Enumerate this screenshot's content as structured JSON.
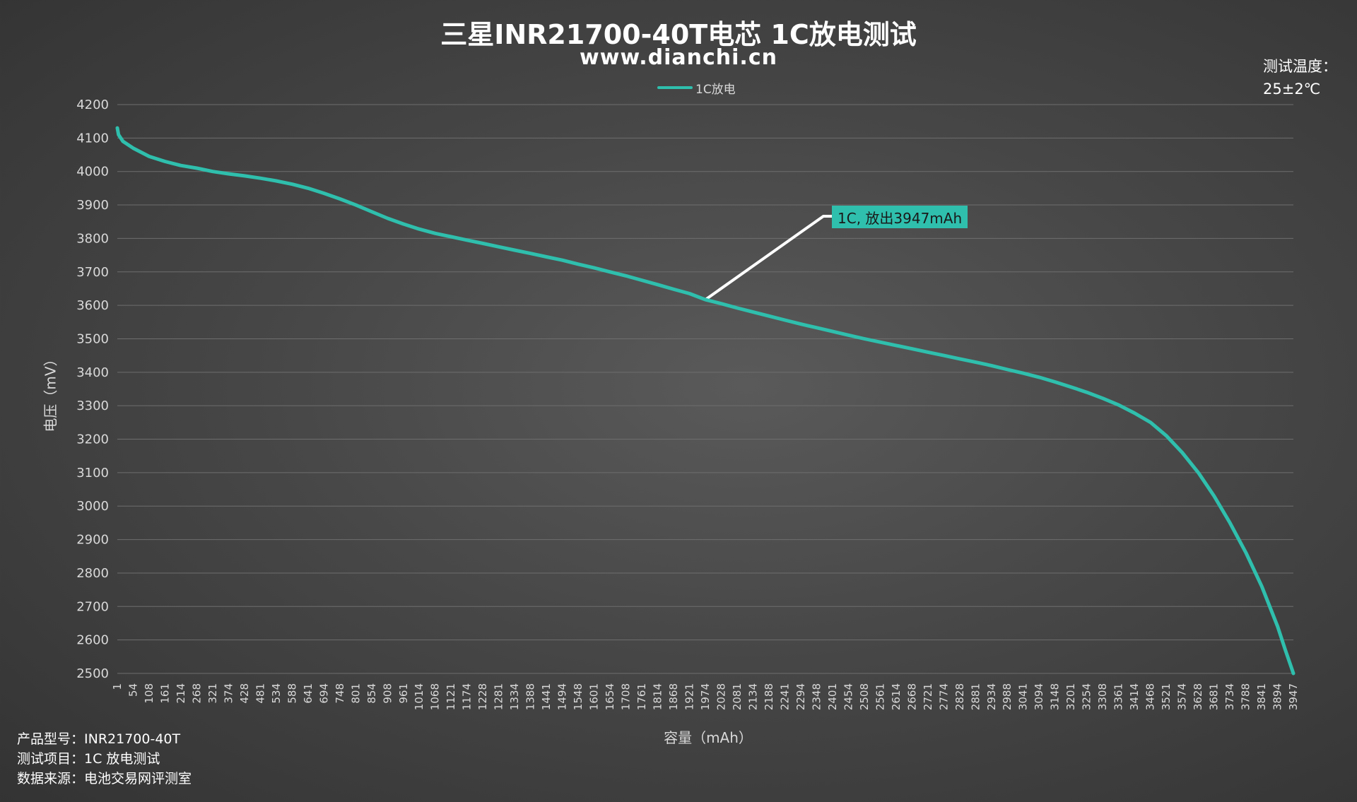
{
  "title": "三星INR21700-40T电芯 1C放电测试",
  "subtitle": "www.dianchi.cn",
  "temperature": {
    "label": "测试温度：",
    "value": "25±2℃"
  },
  "info": [
    "产品型号：INR21700-40T",
    "测试项目：1C 放电测试",
    "数据来源：电池交易网评测室"
  ],
  "annotation": "1C, 放出3947mAh",
  "colors": {
    "series": "#2fbfad",
    "grid": "#6e6e6e",
    "axis_text": "#d9d9d9",
    "leader_line": "#ffffff"
  },
  "chart_data": {
    "type": "line",
    "title": "三星INR21700-40T电芯 1C放电测试",
    "xlabel": "容量（mAh）",
    "ylabel": "电压（mV）",
    "ylim": [
      2500,
      4200
    ],
    "xlim": [
      1,
      3947
    ],
    "grid": true,
    "legend_position": "top-center",
    "y_ticks": [
      2500,
      2600,
      2700,
      2800,
      2900,
      3000,
      3100,
      3200,
      3300,
      3400,
      3500,
      3600,
      3700,
      3800,
      3900,
      4000,
      4100,
      4200
    ],
    "x_ticks": [
      "1",
      "54",
      "108",
      "161",
      "214",
      "268",
      "321",
      "374",
      "428",
      "481",
      "534",
      "588",
      "641",
      "694",
      "748",
      "801",
      "854",
      "908",
      "961",
      "1014",
      "1068",
      "1121",
      "1174",
      "1228",
      "1281",
      "1334",
      "1388",
      "1441",
      "1494",
      "1548",
      "1601",
      "1654",
      "1708",
      "1761",
      "1814",
      "1868",
      "1921",
      "1974",
      "2028",
      "2081",
      "2134",
      "2188",
      "2241",
      "2294",
      "2348",
      "2401",
      "2454",
      "2508",
      "2561",
      "2614",
      "2668",
      "2721",
      "2774",
      "2828",
      "2881",
      "2934",
      "2988",
      "3041",
      "3094",
      "3148",
      "3201",
      "3254",
      "3308",
      "3361",
      "3414",
      "3468",
      "3521",
      "3574",
      "3628",
      "3681",
      "3734",
      "3788",
      "3841",
      "3894",
      "3947"
    ],
    "series": [
      {
        "name": "1C放电",
        "points": [
          [
            1,
            4130
          ],
          [
            5,
            4110
          ],
          [
            20,
            4090
          ],
          [
            54,
            4070
          ],
          [
            108,
            4045
          ],
          [
            161,
            4030
          ],
          [
            214,
            4018
          ],
          [
            268,
            4010
          ],
          [
            321,
            4000
          ],
          [
            374,
            3993
          ],
          [
            428,
            3987
          ],
          [
            481,
            3980
          ],
          [
            534,
            3972
          ],
          [
            588,
            3962
          ],
          [
            641,
            3950
          ],
          [
            694,
            3935
          ],
          [
            748,
            3918
          ],
          [
            801,
            3900
          ],
          [
            854,
            3880
          ],
          [
            908,
            3860
          ],
          [
            961,
            3843
          ],
          [
            1014,
            3828
          ],
          [
            1068,
            3815
          ],
          [
            1121,
            3805
          ],
          [
            1174,
            3795
          ],
          [
            1228,
            3785
          ],
          [
            1281,
            3775
          ],
          [
            1334,
            3765
          ],
          [
            1388,
            3755
          ],
          [
            1441,
            3745
          ],
          [
            1494,
            3735
          ],
          [
            1548,
            3723
          ],
          [
            1601,
            3712
          ],
          [
            1654,
            3700
          ],
          [
            1708,
            3688
          ],
          [
            1761,
            3675
          ],
          [
            1814,
            3662
          ],
          [
            1868,
            3648
          ],
          [
            1921,
            3635
          ],
          [
            1974,
            3617
          ],
          [
            2028,
            3605
          ],
          [
            2081,
            3592
          ],
          [
            2134,
            3580
          ],
          [
            2188,
            3568
          ],
          [
            2241,
            3556
          ],
          [
            2294,
            3544
          ],
          [
            2348,
            3533
          ],
          [
            2401,
            3522
          ],
          [
            2454,
            3511
          ],
          [
            2508,
            3500
          ],
          [
            2561,
            3490
          ],
          [
            2614,
            3480
          ],
          [
            2668,
            3470
          ],
          [
            2721,
            3460
          ],
          [
            2774,
            3450
          ],
          [
            2828,
            3440
          ],
          [
            2881,
            3430
          ],
          [
            2934,
            3420
          ],
          [
            2988,
            3408
          ],
          [
            3041,
            3397
          ],
          [
            3094,
            3385
          ],
          [
            3148,
            3371
          ],
          [
            3201,
            3356
          ],
          [
            3254,
            3340
          ],
          [
            3308,
            3322
          ],
          [
            3361,
            3302
          ],
          [
            3414,
            3278
          ],
          [
            3468,
            3250
          ],
          [
            3521,
            3210
          ],
          [
            3574,
            3160
          ],
          [
            3628,
            3100
          ],
          [
            3681,
            3030
          ],
          [
            3734,
            2950
          ],
          [
            3788,
            2860
          ],
          [
            3841,
            2760
          ],
          [
            3894,
            2640
          ],
          [
            3920,
            2570
          ],
          [
            3947,
            2500
          ]
        ]
      }
    ],
    "annotation": {
      "text": "1C, 放出3947mAh",
      "anchor": [
        1974,
        3617
      ]
    }
  }
}
